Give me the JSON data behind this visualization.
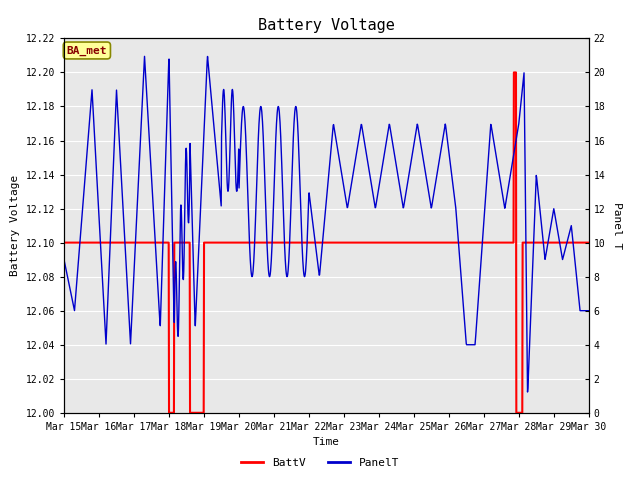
{
  "title": "Battery Voltage",
  "xlabel": "Time",
  "ylabel_left": "Battery Voltage",
  "ylabel_right": "Panel T",
  "ylim_left": [
    12.0,
    12.22
  ],
  "ylim_right": [
    0,
    22
  ],
  "yticks_left": [
    12.0,
    12.02,
    12.04,
    12.06,
    12.08,
    12.1,
    12.12,
    12.14,
    12.16,
    12.18,
    12.2,
    12.22
  ],
  "yticks_right": [
    0,
    2,
    4,
    6,
    8,
    10,
    12,
    14,
    16,
    18,
    20,
    22
  ],
  "xtick_labels": [
    "Mar 15",
    "Mar 16",
    "Mar 17",
    "Mar 18",
    "Mar 19",
    "Mar 20",
    "Mar 21",
    "Mar 22",
    "Mar 23",
    "Mar 24",
    "Mar 25",
    "Mar 26",
    "Mar 27",
    "Mar 28",
    "Mar 29",
    "Mar 30"
  ],
  "fig_bg_color": "#ffffff",
  "plot_bg_color": "#e8e8e8",
  "batt_color": "#ff0000",
  "panel_color": "#0000cc",
  "grid_color": "#ffffff",
  "legend_batt": "BattV",
  "legend_panel": "PanelT",
  "watermark_text": "BA_met",
  "watermark_bg": "#ffff99",
  "watermark_border": "#888800",
  "watermark_text_color": "#880000",
  "title_fontsize": 11,
  "axis_fontsize": 8,
  "tick_fontsize": 7,
  "legend_fontsize": 8
}
